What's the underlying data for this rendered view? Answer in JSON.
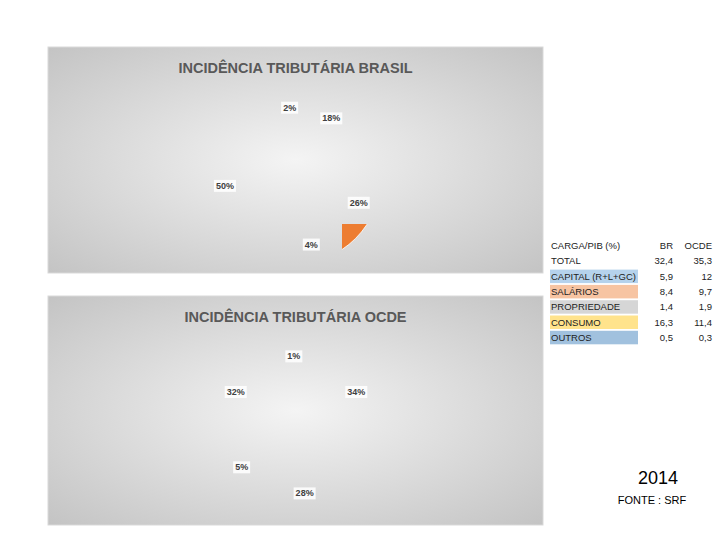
{
  "chart_data": [
    {
      "type": "pie",
      "title": "INCIDÊNCIA TRIBUTÁRIA BRASIL",
      "values": [
        18,
        26,
        4,
        50,
        2
      ],
      "value_labels": [
        "18%",
        "26%",
        "4%",
        "50%",
        "2%"
      ],
      "colors": [
        "#5b9bd5",
        "#ed7d31",
        "#a5a5a5",
        "#ffc000",
        "#2e75b6"
      ],
      "data_labels": true
    },
    {
      "type": "pie",
      "title": "INCIDÊNCIA TRIBUTÁRIA  OCDE",
      "values": [
        34,
        28,
        5,
        32,
        1
      ],
      "value_labels": [
        "34%",
        "28%",
        "5%",
        "32%",
        "1%"
      ],
      "colors": [
        "#5b9bd5",
        "#ed7d31",
        "#a5a5a5",
        "#ffc000",
        "#2e75b6"
      ],
      "data_labels": true
    }
  ],
  "table": {
    "header": [
      "CARGA/PIB  (%)",
      "BR",
      "OCDE"
    ],
    "rows": [
      [
        "TOTAL",
        "32,4",
        "35,3"
      ],
      [
        "CAPITAL (R+L+GC)",
        "5,9",
        "12"
      ],
      [
        "SALÁRIOS",
        "8,4",
        "9,7"
      ],
      [
        "PROPRIEDADE",
        "1,4",
        "1,9"
      ],
      [
        "CONSUMO",
        "16,3",
        "11,4"
      ],
      [
        "OUTROS",
        "0,5",
        "0,3"
      ]
    ]
  },
  "year": "2014",
  "source": "FONTE : SRF"
}
